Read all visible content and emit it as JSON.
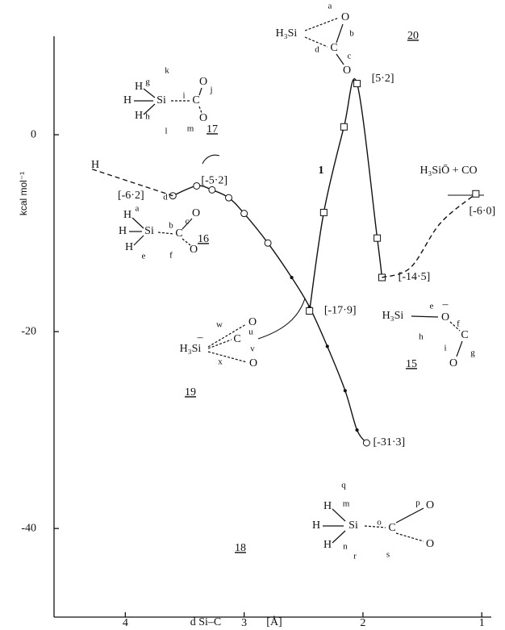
{
  "chart_data": {
    "type": "line",
    "x_label": "d Si–C",
    "x_unit": "[Å]",
    "y_label": "kcal mol⁻¹",
    "xlim": [
      4.6,
      0.92
    ],
    "xticks": [
      4,
      3,
      2,
      1
    ],
    "ylim": [
      -49,
      10
    ],
    "yticks": [
      0,
      -20,
      -40
    ],
    "color": "#111111",
    "series": [
      {
        "x": [
          3.6,
          3.4,
          3.27,
          3.13,
          3.0,
          2.8,
          2.6,
          2.45,
          2.3,
          2.15,
          2.05,
          1.97
        ],
        "values": [
          -6.2,
          -5.2,
          -5.6,
          -6.4,
          -8.0,
          -11,
          -14.5,
          -17.5,
          -21.5,
          -26,
          -30,
          -31.3
        ],
        "value_labels": [
          "[-6·2]",
          "[-5·2]",
          null,
          null,
          null,
          null,
          null,
          null,
          null,
          null,
          null,
          "[-31·3]"
        ],
        "style": "solid",
        "marker": "circle"
      },
      {
        "x": [
          4.28,
          3.6
        ],
        "values": [
          -3.5,
          -6.2
        ],
        "style": "dashed",
        "marker": "none"
      },
      {
        "x": [
          2.45,
          2.33,
          2.16,
          2.05,
          1.88,
          1.84
        ],
        "values": [
          -17.9,
          -7.9,
          0.8,
          5.2,
          -10.5,
          -14.5
        ],
        "value_labels": [
          "[-17·9]",
          null,
          null,
          "[5·2]",
          null,
          "[-14·5]"
        ],
        "style": "solid",
        "marker": "square"
      },
      {
        "x": [
          1.84,
          1.6,
          1.35,
          1.05
        ],
        "values": [
          -14.5,
          -13.5,
          -9,
          -6.0
        ],
        "style": "dashed",
        "marker": "none"
      },
      {
        "x": [
          1.05
        ],
        "values": [
          -6.0
        ],
        "value_labels": [
          "[-6·0]"
        ],
        "style": "solid",
        "marker": "square"
      }
    ],
    "annotations": [
      "H",
      "1",
      "H₃SiŌ + CO"
    ],
    "structures": [
      {
        "number": "17",
        "labels": [
          "H",
          "H",
          "H",
          "Si",
          "C",
          "O",
          "O",
          "g",
          "h",
          "i",
          "j",
          "k",
          "l",
          "m"
        ]
      },
      {
        "number": "16",
        "labels": [
          "H",
          "H",
          "H",
          "Si",
          "C",
          "O",
          "O",
          "a",
          "b",
          "c",
          "d",
          "e",
          "f"
        ]
      },
      {
        "number": "20",
        "labels": [
          "H₃Si",
          "C",
          "O",
          "O",
          "a",
          "b",
          "c",
          "d"
        ]
      },
      {
        "number": "19",
        "labels": [
          "H₃Si",
          "–",
          "C",
          "O",
          "O",
          "w",
          "u",
          "x",
          "v"
        ]
      },
      {
        "number": "15",
        "labels": [
          "H₃Si",
          "O",
          "–",
          "C",
          "O",
          "e",
          "f",
          "h",
          "i",
          "g"
        ]
      },
      {
        "number": "18",
        "labels": [
          "H",
          "H",
          "H",
          "Si",
          "C",
          "O",
          "O",
          "q",
          "m",
          "n",
          "o",
          "p",
          "r",
          "s"
        ]
      }
    ]
  }
}
